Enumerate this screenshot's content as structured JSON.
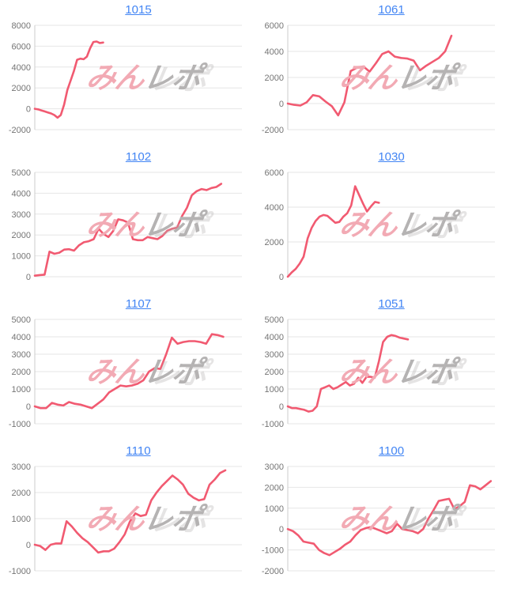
{
  "watermark": {
    "pink_text": "みん",
    "gray_text": "レポ"
  },
  "colors": {
    "line": "#f15a71",
    "title_link": "#4285f4",
    "axis_label": "#757575",
    "gridline": "#e6e6e6",
    "axis_line": "#cccccc",
    "watermark_pink": "#f2aab4",
    "watermark_gray": "#b5b3b3",
    "background": "#ffffff"
  },
  "chart_data": [
    {
      "type": "line",
      "title": "1015",
      "legend": "none",
      "grid": true,
      "yticks": [
        8000,
        6000,
        4000,
        2000,
        0,
        -2000
      ],
      "ylim": [
        -2000,
        8000
      ],
      "width_fraction": 0.33,
      "values": [
        0,
        -50,
        -150,
        -250,
        -350,
        -450,
        -600,
        -850,
        -600,
        400,
        1800,
        2700,
        3600,
        4700,
        4800,
        4750,
        5000,
        5800,
        6400,
        6450,
        6300,
        6350
      ]
    },
    {
      "type": "line",
      "title": "1061",
      "legend": "none",
      "grid": true,
      "yticks": [
        6000,
        4000,
        2000,
        0,
        -2000
      ],
      "ylim": [
        -2000,
        6000
      ],
      "width_fraction": 0.79,
      "values": [
        0,
        -100,
        -150,
        100,
        650,
        550,
        150,
        -200,
        -900,
        100,
        2500,
        2750,
        2850,
        2450,
        3100,
        3800,
        4000,
        3600,
        3500,
        3450,
        3300,
        2550,
        2900,
        3200,
        3500,
        4000,
        5200
      ]
    },
    {
      "type": "line",
      "title": "1102",
      "legend": "none",
      "grid": true,
      "yticks": [
        5000,
        4000,
        3000,
        2000,
        1000,
        0
      ],
      "ylim": [
        0,
        5000
      ],
      "width_fraction": 0.9,
      "values": [
        50,
        80,
        100,
        1200,
        1100,
        1150,
        1300,
        1320,
        1250,
        1500,
        1650,
        1700,
        1800,
        2300,
        2050,
        1900,
        2200,
        2750,
        2700,
        2600,
        1800,
        1750,
        1750,
        1900,
        1850,
        1800,
        1950,
        2200,
        2300,
        2350,
        2900,
        3300,
        3900,
        4100,
        4200,
        4150,
        4250,
        4300,
        4450
      ]
    },
    {
      "type": "line",
      "title": "1030",
      "legend": "none",
      "grid": true,
      "yticks": [
        6000,
        4000,
        2000,
        0
      ],
      "ylim": [
        0,
        6000
      ],
      "width_fraction": 0.44,
      "values": [
        0,
        250,
        450,
        750,
        1150,
        2200,
        2800,
        3200,
        3450,
        3550,
        3500,
        3300,
        3100,
        3150,
        3450,
        3650,
        4100,
        5200,
        4700,
        4200,
        3750,
        4050,
        4300,
        4250
      ]
    },
    {
      "type": "line",
      "title": "1107",
      "legend": "none",
      "grid": true,
      "yticks": [
        5000,
        4000,
        3000,
        2000,
        1000,
        0,
        -1000
      ],
      "ylim": [
        -1000,
        5000
      ],
      "width_fraction": 0.91,
      "values": [
        0,
        -100,
        -100,
        200,
        100,
        50,
        250,
        150,
        100,
        0,
        -100,
        150,
        400,
        800,
        1000,
        1200,
        1150,
        1200,
        1300,
        1500,
        2000,
        2200,
        2150,
        3000,
        3950,
        3600,
        3700,
        3750,
        3750,
        3700,
        3600,
        4150,
        4100,
        4000
      ]
    },
    {
      "type": "line",
      "title": "1051",
      "legend": "none",
      "grid": true,
      "yticks": [
        5000,
        4000,
        3000,
        2000,
        1000,
        0,
        -1000
      ],
      "ylim": [
        -1000,
        5000
      ],
      "width_fraction": 0.58,
      "values": [
        0,
        -100,
        -100,
        -150,
        -200,
        -300,
        -250,
        0,
        1000,
        1100,
        1200,
        1000,
        1100,
        1250,
        1400,
        1200,
        1300,
        1650,
        1350,
        1700,
        1700,
        1650,
        2600,
        3700,
        4000,
        4100,
        4050,
        3950,
        3900,
        3850
      ]
    },
    {
      "type": "line",
      "title": "1110",
      "legend": "none",
      "grid": true,
      "yticks": [
        3000,
        2000,
        1000,
        0,
        -1000
      ],
      "ylim": [
        -1000,
        3000
      ],
      "width_fraction": 0.92,
      "values": [
        0,
        -50,
        -200,
        0,
        50,
        50,
        900,
        700,
        450,
        250,
        100,
        -100,
        -300,
        -250,
        -250,
        -150,
        100,
        400,
        900,
        1200,
        1100,
        1150,
        1700,
        2000,
        2250,
        2450,
        2650,
        2500,
        2300,
        1950,
        1800,
        1700,
        1750,
        2300,
        2500,
        2750,
        2850
      ]
    },
    {
      "type": "line",
      "title": "1100",
      "legend": "none",
      "grid": true,
      "yticks": [
        3000,
        2000,
        1000,
        0,
        -1000,
        -2000
      ],
      "ylim": [
        -2000,
        3000
      ],
      "width_fraction": 0.98,
      "values": [
        0,
        -100,
        -300,
        -600,
        -650,
        -700,
        -1000,
        -1150,
        -1250,
        -1100,
        -950,
        -750,
        -600,
        -300,
        -50,
        50,
        100,
        0,
        -100,
        -200,
        -100,
        250,
        0,
        -50,
        -100,
        -200,
        0,
        500,
        900,
        1350,
        1400,
        1450,
        950,
        1100,
        1300,
        2100,
        2050,
        1900,
        2100,
        2300
      ]
    }
  ]
}
